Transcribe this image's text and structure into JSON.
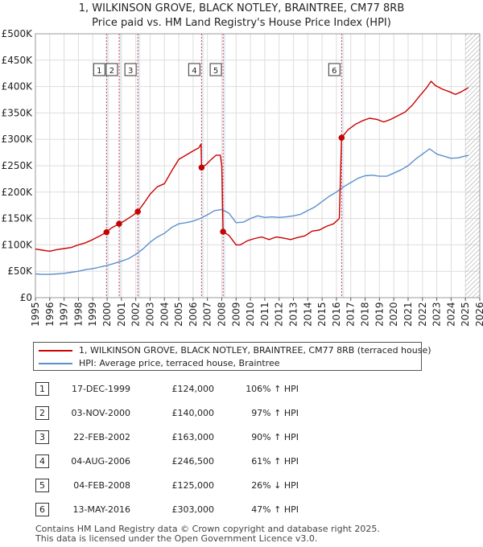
{
  "header": {
    "title": "1, WILKINSON GROVE, BLACK NOTLEY, BRAINTREE, CM77 8RB",
    "subtitle": "Price paid vs. HM Land Registry's House Price Index (HPI)"
  },
  "colors": {
    "price_line": "#cc0000",
    "hpi_line": "#5b8fcc",
    "marker_line": "#cc0000",
    "hatch": "#999999",
    "grid": "#dddddd",
    "plot_bg": "#ffffff",
    "band": "#dde6f3"
  },
  "chart_data": {
    "type": "line",
    "title": "1, WILKINSON GROVE, BLACK NOTLEY, BRAINTREE, CM77 8RB",
    "subtitle": "Price paid vs. HM Land Registry's House Price Index (HPI)",
    "xlabel": "",
    "ylabel": "",
    "xlim": [
      1995,
      2026
    ],
    "ylim": [
      0,
      500000
    ],
    "yticks": [
      {
        "value": 0,
        "label": "£0"
      },
      {
        "value": 50000,
        "label": "£50K"
      },
      {
        "value": 100000,
        "label": "£100K"
      },
      {
        "value": 150000,
        "label": "£150K"
      },
      {
        "value": 200000,
        "label": "£200K"
      },
      {
        "value": 250000,
        "label": "£250K"
      },
      {
        "value": 300000,
        "label": "£300K"
      },
      {
        "value": 350000,
        "label": "£350K"
      },
      {
        "value": 400000,
        "label": "£400K"
      },
      {
        "value": 450000,
        "label": "£450K"
      },
      {
        "value": 500000,
        "label": "£500K"
      }
    ],
    "xticks": [
      "1995",
      "1996",
      "1997",
      "1998",
      "1999",
      "2000",
      "2001",
      "2002",
      "2003",
      "2004",
      "2005",
      "2006",
      "2007",
      "2008",
      "2009",
      "2010",
      "2011",
      "2012",
      "2013",
      "2014",
      "2015",
      "2016",
      "2017",
      "2018",
      "2019",
      "2020",
      "2021",
      "2022",
      "2023",
      "2024",
      "2025",
      "2026"
    ],
    "grid": true,
    "hatched_from": 2025.0,
    "series": [
      {
        "name": "1, WILKINSON GROVE, BLACK NOTLEY, BRAINTREE, CM77 8RB (terraced house)",
        "color": "#cc0000",
        "points": [
          [
            1995.0,
            92000
          ],
          [
            1995.5,
            90000
          ],
          [
            1996.0,
            88000
          ],
          [
            1996.5,
            91000
          ],
          [
            1997.0,
            93000
          ],
          [
            1997.5,
            95000
          ],
          [
            1998.0,
            100000
          ],
          [
            1998.5,
            104000
          ],
          [
            1999.0,
            110000
          ],
          [
            1999.5,
            117000
          ],
          [
            1999.96,
            124000
          ],
          [
            2000.3,
            132000
          ],
          [
            2000.84,
            140000
          ],
          [
            2001.3,
            147000
          ],
          [
            2001.8,
            156000
          ],
          [
            2002.14,
            163000
          ],
          [
            2002.6,
            180000
          ],
          [
            2003.0,
            196000
          ],
          [
            2003.5,
            210000
          ],
          [
            2004.0,
            216000
          ],
          [
            2004.5,
            240000
          ],
          [
            2005.0,
            262000
          ],
          [
            2005.5,
            270000
          ],
          [
            2006.0,
            278000
          ],
          [
            2006.4,
            284000
          ],
          [
            2006.55,
            291000
          ],
          [
            2006.59,
            246500
          ],
          [
            2006.9,
            252000
          ],
          [
            2007.2,
            260000
          ],
          [
            2007.6,
            270000
          ],
          [
            2007.9,
            270000
          ],
          [
            2008.0,
            250000
          ],
          [
            2008.09,
            125000
          ],
          [
            2008.5,
            118000
          ],
          [
            2009.0,
            100000
          ],
          [
            2009.3,
            100000
          ],
          [
            2009.8,
            108000
          ],
          [
            2010.3,
            112000
          ],
          [
            2010.8,
            115000
          ],
          [
            2011.3,
            110000
          ],
          [
            2011.8,
            115000
          ],
          [
            2012.3,
            113000
          ],
          [
            2012.8,
            110000
          ],
          [
            2013.3,
            114000
          ],
          [
            2013.8,
            117000
          ],
          [
            2014.3,
            126000
          ],
          [
            2014.8,
            128000
          ],
          [
            2015.3,
            135000
          ],
          [
            2015.8,
            140000
          ],
          [
            2016.2,
            150000
          ],
          [
            2016.36,
            303000
          ],
          [
            2016.8,
            318000
          ],
          [
            2017.3,
            328000
          ],
          [
            2017.8,
            335000
          ],
          [
            2018.3,
            340000
          ],
          [
            2018.8,
            338000
          ],
          [
            2019.3,
            333000
          ],
          [
            2019.8,
            338000
          ],
          [
            2020.3,
            345000
          ],
          [
            2020.8,
            352000
          ],
          [
            2021.3,
            365000
          ],
          [
            2021.8,
            382000
          ],
          [
            2022.3,
            398000
          ],
          [
            2022.6,
            410000
          ],
          [
            2022.9,
            402000
          ],
          [
            2023.4,
            395000
          ],
          [
            2023.9,
            390000
          ],
          [
            2024.3,
            385000
          ],
          [
            2024.7,
            390000
          ],
          [
            2025.2,
            398000
          ]
        ]
      },
      {
        "name": "HPI: Average price, terraced house, Braintree",
        "color": "#5b8fcc",
        "points": [
          [
            1995.0,
            45000
          ],
          [
            1995.5,
            44000
          ],
          [
            1996.0,
            44000
          ],
          [
            1996.5,
            45000
          ],
          [
            1997.0,
            46000
          ],
          [
            1997.5,
            48000
          ],
          [
            1998.0,
            50000
          ],
          [
            1998.5,
            53000
          ],
          [
            1999.0,
            55000
          ],
          [
            1999.5,
            58000
          ],
          [
            2000.0,
            61000
          ],
          [
            2000.5,
            65000
          ],
          [
            2001.0,
            69000
          ],
          [
            2001.5,
            74000
          ],
          [
            2002.0,
            82000
          ],
          [
            2002.5,
            92000
          ],
          [
            2003.0,
            105000
          ],
          [
            2003.5,
            115000
          ],
          [
            2004.0,
            122000
          ],
          [
            2004.5,
            133000
          ],
          [
            2005.0,
            140000
          ],
          [
            2005.5,
            142000
          ],
          [
            2006.0,
            145000
          ],
          [
            2006.5,
            150000
          ],
          [
            2007.0,
            157000
          ],
          [
            2007.5,
            165000
          ],
          [
            2008.0,
            167000
          ],
          [
            2008.5,
            160000
          ],
          [
            2009.0,
            142000
          ],
          [
            2009.5,
            143000
          ],
          [
            2010.0,
            150000
          ],
          [
            2010.5,
            155000
          ],
          [
            2011.0,
            152000
          ],
          [
            2011.5,
            153000
          ],
          [
            2012.0,
            152000
          ],
          [
            2012.5,
            153000
          ],
          [
            2013.0,
            155000
          ],
          [
            2013.5,
            158000
          ],
          [
            2014.0,
            165000
          ],
          [
            2014.5,
            172000
          ],
          [
            2015.0,
            182000
          ],
          [
            2015.5,
            192000
          ],
          [
            2016.0,
            200000
          ],
          [
            2016.5,
            210000
          ],
          [
            2017.0,
            218000
          ],
          [
            2017.5,
            226000
          ],
          [
            2018.0,
            231000
          ],
          [
            2018.5,
            232000
          ],
          [
            2019.0,
            230000
          ],
          [
            2019.5,
            230000
          ],
          [
            2020.0,
            236000
          ],
          [
            2020.5,
            242000
          ],
          [
            2021.0,
            250000
          ],
          [
            2021.5,
            262000
          ],
          [
            2022.0,
            272000
          ],
          [
            2022.5,
            282000
          ],
          [
            2023.0,
            272000
          ],
          [
            2023.5,
            268000
          ],
          [
            2024.0,
            264000
          ],
          [
            2024.5,
            265000
          ],
          [
            2025.2,
            270000
          ]
        ]
      }
    ],
    "sales": [
      {
        "id": "1",
        "x": 1999.96,
        "price": 124000
      },
      {
        "id": "2",
        "x": 2000.84,
        "price": 140000
      },
      {
        "id": "3",
        "x": 2002.14,
        "price": 163000
      },
      {
        "id": "4",
        "x": 2006.59,
        "price": 246500
      },
      {
        "id": "5",
        "x": 2008.09,
        "price": 125000
      },
      {
        "id": "6",
        "x": 2016.36,
        "price": 303000
      }
    ]
  },
  "legend": {
    "price_label": "1, WILKINSON GROVE, BLACK NOTLEY, BRAINTREE, CM77 8RB (terraced house)",
    "hpi_label": "HPI: Average price, terraced house, Braintree"
  },
  "table": [
    {
      "num": "1",
      "date": "17-DEC-1999",
      "price": "£124,000",
      "hpi": "106% ↑ HPI"
    },
    {
      "num": "2",
      "date": "03-NOV-2000",
      "price": "£140,000",
      "hpi": "97% ↑ HPI"
    },
    {
      "num": "3",
      "date": "22-FEB-2002",
      "price": "£163,000",
      "hpi": "90% ↑ HPI"
    },
    {
      "num": "4",
      "date": "04-AUG-2006",
      "price": "£246,500",
      "hpi": "61% ↑ HPI"
    },
    {
      "num": "5",
      "date": "04-FEB-2008",
      "price": "£125,000",
      "hpi": "26% ↓ HPI"
    },
    {
      "num": "6",
      "date": "13-MAY-2016",
      "price": "£303,000",
      "hpi": "47% ↑ HPI"
    }
  ],
  "footer": {
    "line1": "Contains HM Land Registry data © Crown copyright and database right 2025.",
    "line2": "This data is licensed under the Open Government Licence v3.0."
  }
}
